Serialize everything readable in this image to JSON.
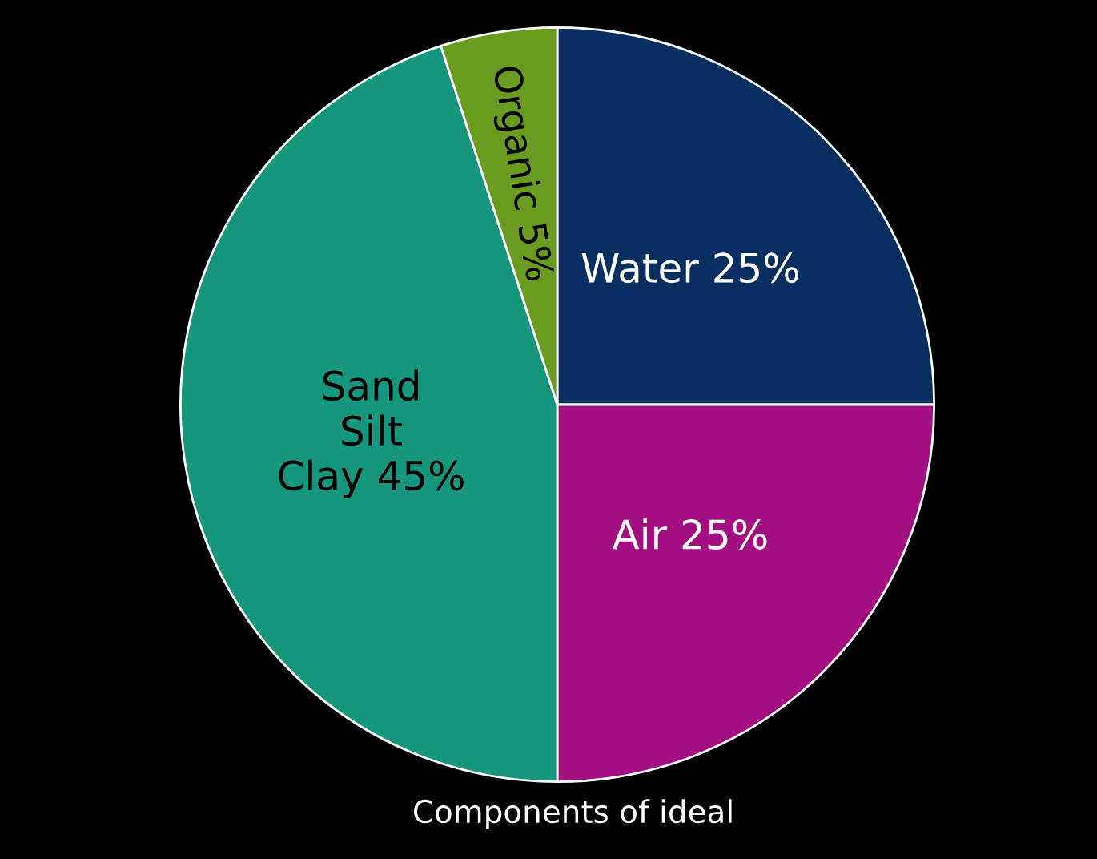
{
  "chart_data": {
    "type": "pie",
    "categories": [
      "Water",
      "Air",
      "Sand\nSilt\nClay",
      "Organic"
    ],
    "values": [
      25,
      25,
      45,
      5
    ],
    "value_labels": [
      "25%",
      "25%",
      "45%",
      "5%"
    ],
    "colors": [
      "#062f60",
      "#a30f80",
      "#16967c",
      "#699b20"
    ],
    "annotations": [
      "Components of ideal"
    ]
  }
}
